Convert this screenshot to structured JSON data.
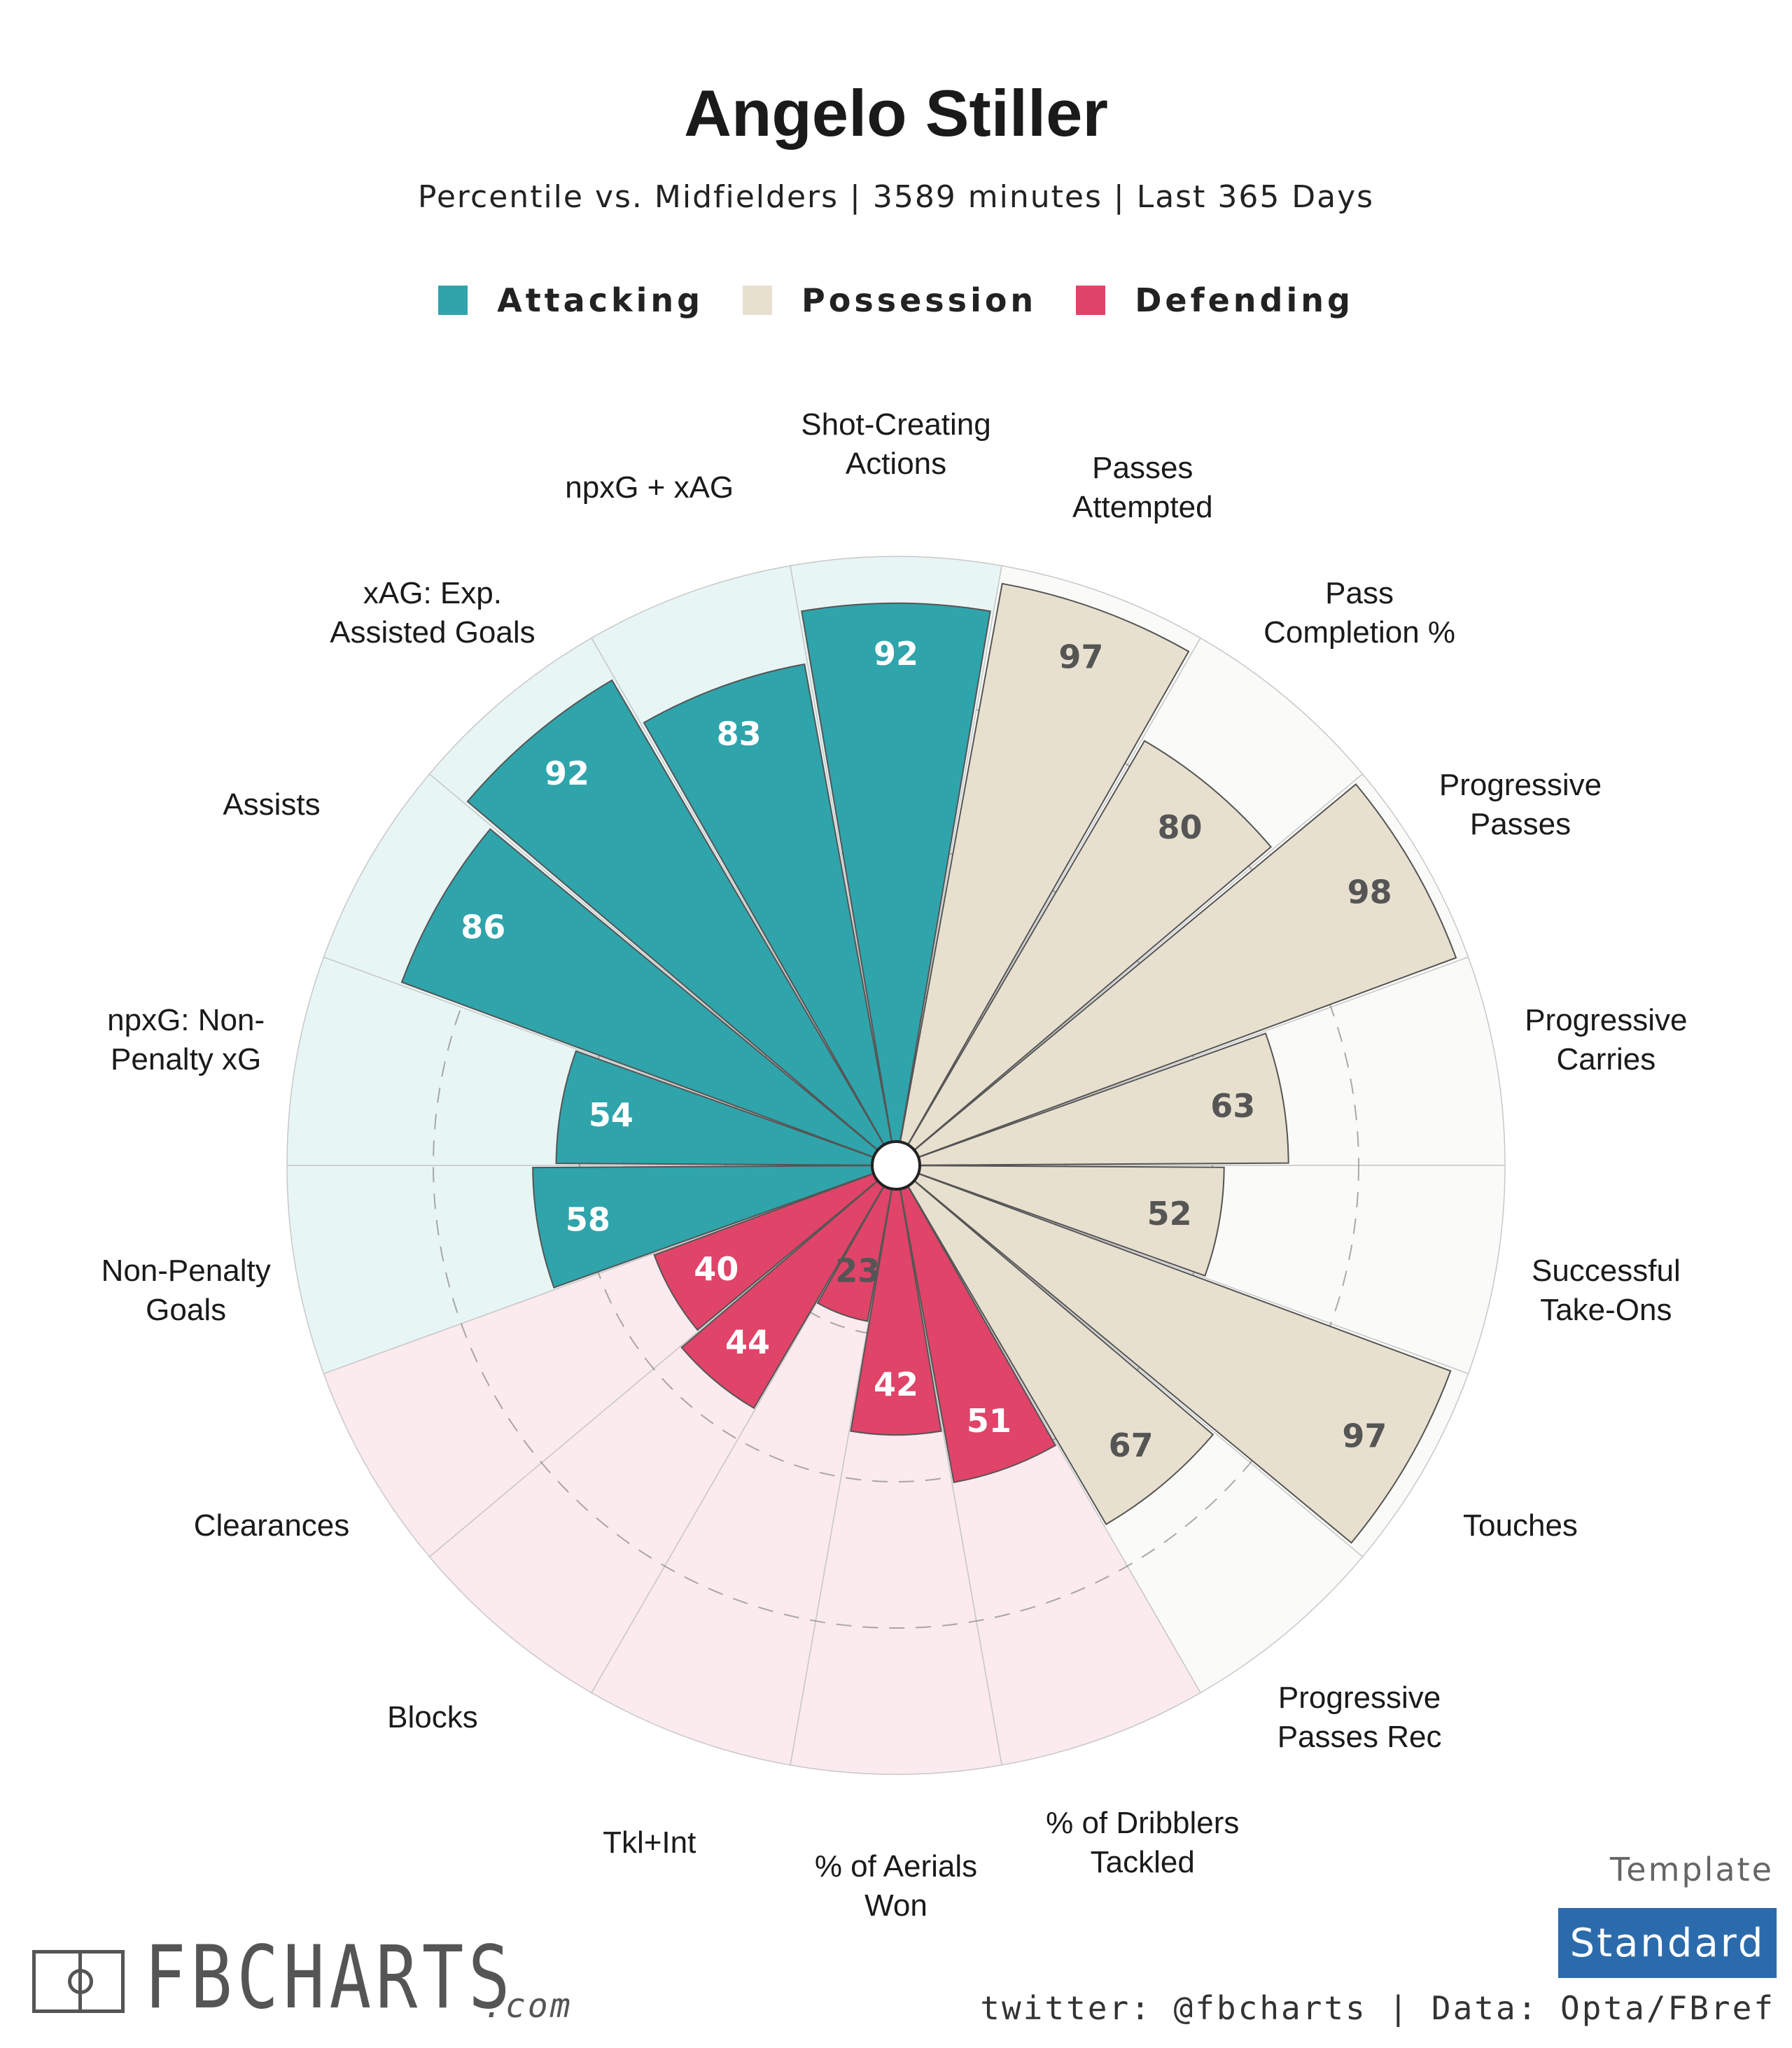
{
  "title": "Angelo Stiller",
  "subtitle": "Percentile vs. Midfielders | 3589 minutes | Last 365 Days",
  "legend": [
    {
      "label": "Attacking",
      "color": "#2fa4ab"
    },
    {
      "label": "Possession",
      "color": "#e8e0cf"
    },
    {
      "label": "Defending",
      "color": "#e04468"
    }
  ],
  "colors": {
    "attacking": "#2fa4ab",
    "attacking_bg": "#e8f5f5",
    "possession": "#e8e0cf",
    "possession_bg": "#fafaf8",
    "defending": "#e04468",
    "defending_bg": "#fbeaee"
  },
  "chart_data": {
    "type": "radial-bar",
    "scale_max": 100,
    "guide_rings": [
      25,
      50,
      75
    ],
    "categories": [
      {
        "label": "Shot-Creating\nActions",
        "value": 92,
        "group": "attacking"
      },
      {
        "label": "Passes\nAttempted",
        "value": 97,
        "group": "possession"
      },
      {
        "label": "Pass\nCompletion %",
        "value": 80,
        "group": "possession"
      },
      {
        "label": "Progressive\nPasses",
        "value": 98,
        "group": "possession"
      },
      {
        "label": "Progressive\nCarries",
        "value": 63,
        "group": "possession"
      },
      {
        "label": "Successful\nTake-Ons",
        "value": 52,
        "group": "possession"
      },
      {
        "label": "Touches",
        "value": 97,
        "group": "possession"
      },
      {
        "label": "Progressive\nPasses Rec",
        "value": 67,
        "group": "possession"
      },
      {
        "label": "% of Dribblers\nTackled",
        "value": 51,
        "group": "defending"
      },
      {
        "label": "% of Aerials\nWon",
        "value": 42,
        "group": "defending"
      },
      {
        "label": "Tkl+Int",
        "value": 23,
        "group": "defending"
      },
      {
        "label": "Blocks",
        "value": 44,
        "group": "defending"
      },
      {
        "label": "Clearances",
        "value": 40,
        "group": "defending"
      },
      {
        "label": "Non-Penalty\nGoals",
        "value": 58,
        "group": "attacking"
      },
      {
        "label": "npxG: Non-\nPenalty xG",
        "value": 54,
        "group": "attacking"
      },
      {
        "label": "Assists",
        "value": 86,
        "group": "attacking"
      },
      {
        "label": "xAG: Exp.\nAssisted Goals",
        "value": 92,
        "group": "attacking"
      },
      {
        "label": "npxG + xAG",
        "value": 83,
        "group": "attacking"
      }
    ]
  },
  "footer": {
    "template_label": "Template",
    "template_value": "Standard",
    "credits": "twitter: @fbcharts | Data: Opta/FBref",
    "logo_text": "FBCHARTS",
    "logo_suffix": ".com"
  }
}
